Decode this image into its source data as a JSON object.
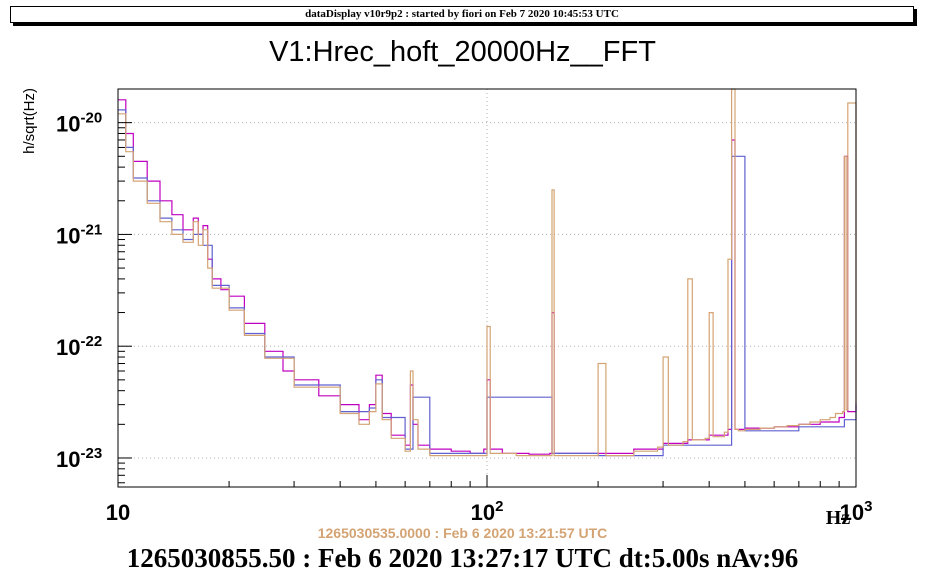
{
  "window": {
    "banner": "dataDisplay v10r9p2 : started by fiori on Feb  7 2020 10:45:53 UTC"
  },
  "stamps": {
    "reference": "1265030535.0000 : Feb  6 2020 13:21:57 UTC",
    "current": "1265030855.50 : Feb  6 2020 13:27:17 UTC dt:5.00s nAv:96"
  },
  "colors": {
    "current": "#c000c0",
    "reference_blue": "#6060d0",
    "reference_tan": "#d4a373",
    "grid": "#b0b0b0"
  },
  "chart_data": {
    "type": "line",
    "title": "V1:Hrec_hoft_20000Hz__FFT",
    "xlabel": "Hz",
    "ylabel": "h/sqrt(Hz)",
    "x_scale": "log",
    "y_scale": "log",
    "xlim": [
      10,
      1000
    ],
    "ylim": [
      5.5e-24,
      2e-20
    ],
    "grid": true,
    "x_ticks": [
      {
        "value": 10,
        "base": "10",
        "exp": ""
      },
      {
        "value": 100,
        "base": "10",
        "exp": "2"
      },
      {
        "value": 1000,
        "base": "10",
        "exp": "3"
      }
    ],
    "y_ticks": [
      {
        "value": 1e-20,
        "base": "10",
        "exp": "-20"
      },
      {
        "value": 1e-21,
        "base": "10",
        "exp": "-21"
      },
      {
        "value": 1e-22,
        "base": "10",
        "exp": "-22"
      },
      {
        "value": 1e-23,
        "base": "10",
        "exp": "-23"
      }
    ],
    "series": [
      {
        "color": "#c000c0",
        "x": [
          10,
          10.5,
          11,
          12,
          13,
          14,
          15,
          16,
          16.5,
          17,
          17.5,
          18,
          19,
          20,
          22,
          25,
          28,
          30,
          35,
          40,
          45,
          48,
          50,
          52,
          55,
          60,
          62,
          63,
          65,
          70,
          80,
          90,
          98,
          100,
          102,
          110,
          130,
          148,
          150,
          152,
          170,
          200,
          250,
          300,
          350,
          400,
          450,
          460,
          470,
          500,
          600,
          700,
          800,
          900,
          930,
          950,
          1000
        ],
        "y": [
          1.6e-20,
          8e-21,
          4.5e-21,
          3e-21,
          2e-21,
          1.5e-21,
          1.1e-21,
          1.4e-21,
          1e-21,
          1.2e-21,
          6e-22,
          4e-22,
          3.2e-22,
          2.8e-22,
          1.6e-22,
          9e-23,
          6e-23,
          5e-23,
          3.6e-23,
          3e-23,
          2.2e-23,
          3e-23,
          5.5e-23,
          2.5e-23,
          1.6e-23,
          1.3e-23,
          4.5e-23,
          2e-23,
          1.3e-23,
          1.2e-23,
          1.15e-23,
          1.1e-23,
          1.2e-23,
          5e-23,
          1.2e-23,
          1.1e-23,
          1.08e-23,
          1.1e-23,
          2e-22,
          1.1e-23,
          1.1e-23,
          1.1e-23,
          1.2e-23,
          1.35e-23,
          1.45e-23,
          1.6e-23,
          1.8e-23,
          7e-21,
          1.8e-23,
          1.85e-23,
          1.9e-23,
          2e-23,
          2.1e-23,
          2.3e-23,
          5e-21,
          2.6e-23,
          3.1e-23
        ]
      },
      {
        "color": "#6060d0",
        "x": [
          10,
          10.5,
          11,
          12,
          13,
          14,
          15,
          16,
          17,
          18,
          20,
          22,
          25,
          30,
          40,
          48,
          50,
          52,
          60,
          63,
          70,
          100,
          150,
          200,
          300,
          460,
          500,
          700,
          930,
          1000
        ],
        "y": [
          1.3e-20,
          6e-21,
          3.2e-21,
          2e-21,
          1.4e-21,
          1.1e-21,
          9e-22,
          1e-21,
          8e-22,
          3.5e-22,
          2.2e-22,
          1.3e-22,
          8e-23,
          4.5e-23,
          2.6e-23,
          2.8e-23,
          5e-23,
          2.3e-23,
          1.2e-23,
          3.5e-23,
          1.1e-23,
          3.5e-23,
          1.1e-23,
          1.05e-23,
          1.3e-23,
          5e-21,
          1.75e-23,
          1.9e-23,
          2.2e-23,
          3e-23
        ]
      },
      {
        "color": "#d4a373",
        "x": [
          10,
          10.5,
          11,
          12,
          13,
          14,
          15,
          16,
          16.5,
          17,
          17.5,
          18,
          20,
          22,
          25,
          30,
          40,
          45,
          48,
          50,
          52,
          55,
          60,
          62,
          63,
          65,
          70,
          80,
          95,
          100,
          102,
          120,
          148,
          150,
          152,
          190,
          200,
          210,
          250,
          290,
          300,
          310,
          340,
          350,
          360,
          390,
          400,
          410,
          440,
          450,
          460,
          470,
          480,
          500,
          550,
          600,
          650,
          700,
          750,
          800,
          850,
          880,
          920,
          930,
          940,
          950,
          1000
        ],
        "y": [
          1.2e-20,
          5.5e-21,
          3e-21,
          1.9e-21,
          1.3e-21,
          1e-21,
          8.5e-22,
          1.3e-21,
          8e-22,
          1.1e-21,
          5e-22,
          3.3e-22,
          2.1e-22,
          1.25e-22,
          7.8e-23,
          4.3e-23,
          2.5e-23,
          2e-23,
          2.6e-23,
          4.6e-23,
          2.2e-23,
          1.5e-23,
          1.15e-23,
          6e-23,
          2.2e-23,
          1.2e-23,
          1.05e-23,
          1.05e-23,
          1.05e-23,
          1.5e-22,
          1.1e-23,
          1.05e-23,
          1.05e-23,
          2.5e-21,
          1.05e-23,
          1.05e-23,
          7e-23,
          1.05e-23,
          1.15e-23,
          1.25e-23,
          8e-23,
          1.3e-23,
          1.4e-23,
          4e-22,
          1.45e-23,
          1.5e-23,
          2e-22,
          1.55e-23,
          1.7e-23,
          6e-22,
          2e-20,
          1.8e-23,
          1.75e-23,
          1.8e-23,
          1.85e-23,
          1.9e-23,
          1.95e-23,
          2e-23,
          2.1e-23,
          2.2e-23,
          2.3e-23,
          2.5e-23,
          2.6e-23,
          5e-21,
          2.7e-23,
          1.5e-20,
          3e-23
        ]
      }
    ]
  }
}
